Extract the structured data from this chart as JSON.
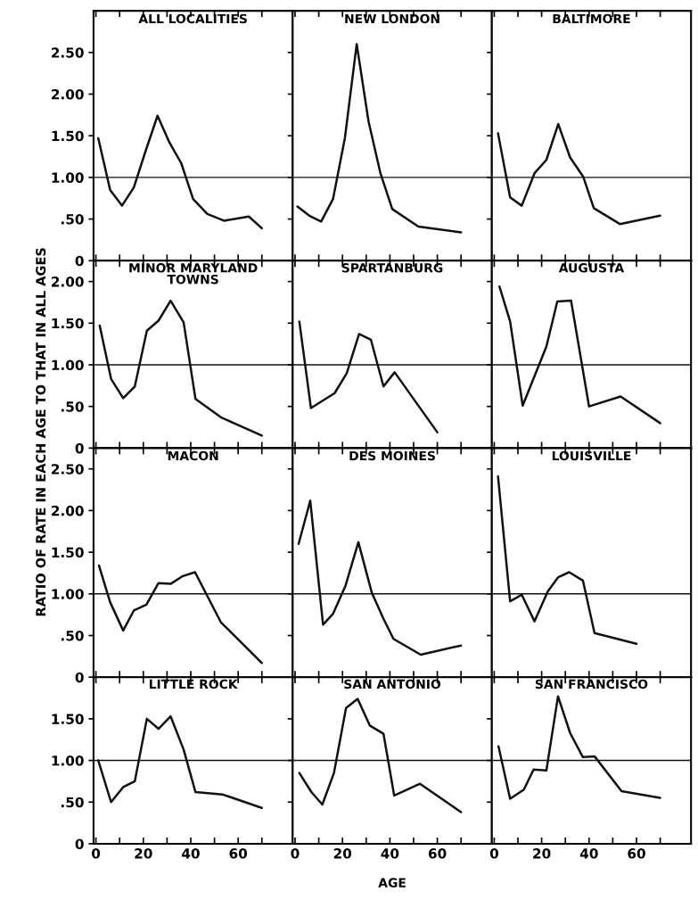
{
  "chart_data": [
    {
      "type": "line",
      "title": "ALL LOCALITIES",
      "x": [
        1,
        6,
        11,
        16,
        21,
        26,
        31,
        36,
        41,
        47,
        54,
        64.5,
        70
      ],
      "series": [
        {
          "color": "#111111",
          "values": [
            1.47,
            0.85,
            0.66,
            0.88,
            1.32,
            1.74,
            1.42,
            1.17,
            0.74,
            0.56,
            0.48,
            0.53,
            0.39
          ]
        }
      ],
      "xlim": [
        -1,
        83
      ],
      "ylim": [
        0,
        3.0
      ],
      "xticks": [
        0,
        10,
        20,
        30,
        40,
        50,
        60,
        70
      ],
      "yticks": [
        0,
        {
          "value": 0.5,
          "label": ".50"
        },
        {
          "value": 1,
          "label": "1.00"
        },
        {
          "value": 1.5,
          "label": "1.50"
        },
        {
          "value": 2,
          "label": "2.00"
        },
        {
          "value": 2.5,
          "label": "2.50"
        }
      ],
      "ref_lines": [
        {
          "axis": "y",
          "value": 1
        }
      ],
      "tick_labels": "y"
    },
    {
      "type": "line",
      "title": "NEW LONDON",
      "x": [
        1,
        6,
        11,
        16,
        21,
        26,
        31,
        36,
        41,
        52,
        70
      ],
      "series": [
        {
          "color": "#111111",
          "values": [
            0.65,
            0.54,
            0.47,
            0.74,
            1.47,
            2.6,
            1.67,
            1.05,
            0.62,
            0.41,
            0.34
          ]
        }
      ],
      "xlim": [
        -1,
        83
      ],
      "ylim": [
        0,
        3.0
      ],
      "xticks": [
        0,
        10,
        20,
        30,
        40,
        50,
        60,
        70
      ],
      "yticks": [
        0,
        0.5,
        1,
        1.5,
        2,
        2.5
      ],
      "ref_lines": [
        {
          "axis": "y",
          "value": 1
        }
      ],
      "tick_labels": false
    },
    {
      "type": "line",
      "title": "BALTIMORE",
      "x": [
        1.6,
        6.7,
        11.6,
        17,
        22,
        27,
        32,
        37.5,
        42,
        53,
        70
      ],
      "series": [
        {
          "color": "#111111",
          "values": [
            1.53,
            0.76,
            0.66,
            1.05,
            1.21,
            1.64,
            1.24,
            1.01,
            0.63,
            0.44,
            0.54
          ]
        }
      ],
      "xlim": [
        -1,
        83
      ],
      "ylim": [
        0,
        3.0
      ],
      "xticks": [
        0,
        10,
        20,
        30,
        40,
        50,
        60,
        70
      ],
      "yticks": [
        0,
        0.5,
        1,
        1.5,
        2,
        2.5
      ],
      "ref_lines": [
        {
          "axis": "y",
          "value": 1
        }
      ],
      "tick_labels": false
    },
    {
      "type": "line",
      "title": "MINOR MARYLAND\nTOWNS",
      "x": [
        1.6,
        6.4,
        11.5,
        16.4,
        21.5,
        26.4,
        31.5,
        37,
        42,
        52.7,
        70
      ],
      "series": [
        {
          "color": "#111111",
          "values": [
            1.47,
            0.83,
            0.6,
            0.74,
            1.41,
            1.53,
            1.77,
            1.51,
            0.59,
            0.37,
            0.15
          ]
        }
      ],
      "xlim": [
        -1,
        83
      ],
      "ylim": [
        0,
        2.25
      ],
      "xticks": [
        0,
        10,
        20,
        30,
        40,
        50,
        60,
        70
      ],
      "yticks": [
        0,
        {
          "value": 0.5,
          "label": ".50"
        },
        {
          "value": 1,
          "label": "1.00"
        },
        {
          "value": 1.5,
          "label": "1.50"
        },
        {
          "value": 2,
          "label": "2.00"
        }
      ],
      "ref_lines": [
        {
          "axis": "y",
          "value": 1
        }
      ],
      "tick_labels": "y"
    },
    {
      "type": "line",
      "title": "SPARTANBURG",
      "x": [
        1.8,
        6.7,
        16.7,
        21.8,
        27,
        32,
        37.3,
        42,
        60
      ],
      "series": [
        {
          "color": "#111111",
          "values": [
            1.52,
            0.48,
            0.66,
            0.9,
            1.37,
            1.3,
            0.74,
            0.91,
            0.19
          ]
        }
      ],
      "xlim": [
        -1,
        83
      ],
      "ylim": [
        0,
        2.25
      ],
      "xticks": [
        0,
        10,
        20,
        30,
        40,
        50,
        60,
        70
      ],
      "yticks": [
        0,
        0.5,
        1,
        1.5,
        2
      ],
      "ref_lines": [
        {
          "axis": "y",
          "value": 1
        }
      ],
      "tick_labels": false
    },
    {
      "type": "line",
      "title": "AUGUSTA",
      "x": [
        2.2,
        6.7,
        12,
        22,
        26.6,
        32.4,
        40,
        53.3,
        70
      ],
      "series": [
        {
          "color": "#111111",
          "values": [
            1.94,
            1.52,
            0.51,
            1.22,
            1.76,
            1.77,
            0.5,
            0.62,
            0.3
          ]
        }
      ],
      "xlim": [
        -1,
        83
      ],
      "ylim": [
        0,
        2.25
      ],
      "xticks": [
        0,
        10,
        20,
        30,
        40,
        50,
        60,
        70
      ],
      "yticks": [
        0,
        0.5,
        1,
        1.5,
        2
      ],
      "ref_lines": [
        {
          "axis": "y",
          "value": 1
        }
      ],
      "tick_labels": false
    },
    {
      "type": "line",
      "title": "MACON",
      "ylabel": "RATIO OF RATE IN EACH AGE TO THAT IN ALL AGES",
      "x": [
        1.3,
        6,
        11.5,
        16,
        21.3,
        26.4,
        31.5,
        36.4,
        41.8,
        52.7,
        70
      ],
      "series": [
        {
          "color": "#111111",
          "values": [
            1.34,
            0.9,
            0.56,
            0.8,
            0.87,
            1.13,
            1.12,
            1.21,
            1.26,
            0.66,
            0.17
          ]
        }
      ],
      "xlim": [
        -1,
        83
      ],
      "ylim": [
        0,
        2.75
      ],
      "xticks": [
        0,
        10,
        20,
        30,
        40,
        50,
        60,
        70
      ],
      "yticks": [
        0,
        {
          "value": 0.5,
          "label": ".50"
        },
        {
          "value": 1,
          "label": "1.00"
        },
        {
          "value": 1.5,
          "label": "1.50"
        },
        {
          "value": 2,
          "label": "2.00"
        },
        {
          "value": 2.5,
          "label": "2.50"
        }
      ],
      "ref_lines": [
        {
          "axis": "y",
          "value": 1
        }
      ],
      "tick_labels": "y"
    },
    {
      "type": "line",
      "title": "DES MOINES",
      "x": [
        1.5,
        6.4,
        11.8,
        16,
        21.3,
        26.7,
        32.4,
        37.3,
        41.5,
        53,
        70
      ],
      "series": [
        {
          "color": "#111111",
          "values": [
            1.6,
            2.12,
            0.63,
            0.76,
            1.1,
            1.62,
            1.01,
            0.7,
            0.46,
            0.27,
            0.38
          ]
        }
      ],
      "xlim": [
        -1,
        83
      ],
      "ylim": [
        0,
        2.75
      ],
      "xticks": [
        0,
        10,
        20,
        30,
        40,
        50,
        60,
        70
      ],
      "yticks": [
        0,
        0.5,
        1,
        1.5,
        2,
        2.5
      ],
      "ref_lines": [
        {
          "axis": "y",
          "value": 1
        }
      ],
      "tick_labels": false
    },
    {
      "type": "line",
      "title": "LOUISVILLE",
      "x": [
        1.6,
        6.7,
        11.6,
        17,
        22.6,
        27,
        31.6,
        37.4,
        42.3,
        60
      ],
      "series": [
        {
          "color": "#111111",
          "values": [
            2.41,
            0.91,
            0.99,
            0.67,
            1.03,
            1.2,
            1.26,
            1.16,
            0.53,
            0.4
          ]
        }
      ],
      "xlim": [
        -1,
        83
      ],
      "ylim": [
        0,
        2.75
      ],
      "xticks": [
        0,
        10,
        20,
        30,
        40,
        50,
        60,
        70
      ],
      "yticks": [
        0,
        0.5,
        1,
        1.5,
        2,
        2.5
      ],
      "ref_lines": [
        {
          "axis": "y",
          "value": 1
        }
      ],
      "tick_labels": false
    },
    {
      "type": "line",
      "title": "LITTLE ROCK",
      "x": [
        1,
        6.4,
        11.5,
        16.4,
        21.5,
        26.4,
        31.5,
        37,
        42,
        53.6,
        70
      ],
      "series": [
        {
          "color": "#111111",
          "values": [
            1.0,
            0.5,
            0.68,
            0.75,
            1.5,
            1.38,
            1.53,
            1.13,
            0.62,
            0.59,
            0.43
          ]
        }
      ],
      "xlim": [
        -1,
        83
      ],
      "ylim": [
        0,
        2.0
      ],
      "xticks": [
        {
          "value": 0,
          "label": "0"
        },
        {
          "value": 10,
          "label": null
        },
        {
          "value": 20,
          "label": "20"
        },
        {
          "value": 30,
          "label": null
        },
        {
          "value": 40,
          "label": "40"
        },
        {
          "value": 50,
          "label": null
        },
        {
          "value": 60,
          "label": "60"
        },
        {
          "value": 70,
          "label": null
        }
      ],
      "yticks": [
        0,
        {
          "value": 0.5,
          "label": ".50"
        },
        {
          "value": 1,
          "label": "1.00"
        },
        {
          "value": 1.5,
          "label": "1.50"
        }
      ],
      "ref_lines": [
        {
          "axis": "y",
          "value": 1
        }
      ]
    },
    {
      "type": "line",
      "title": "SAN ANTONIO",
      "xlabel": "AGE",
      "x": [
        1.8,
        6.9,
        11.5,
        16.4,
        21.5,
        26.4,
        31.5,
        37.3,
        41.8,
        52.7,
        70
      ],
      "series": [
        {
          "color": "#111111",
          "values": [
            0.85,
            0.62,
            0.47,
            0.85,
            1.63,
            1.74,
            1.42,
            1.32,
            0.58,
            0.72,
            0.38
          ]
        }
      ],
      "xlim": [
        -1,
        83
      ],
      "ylim": [
        0,
        2.0
      ],
      "xticks": [
        {
          "value": 0,
          "label": "0"
        },
        {
          "value": 10,
          "label": null
        },
        {
          "value": 20,
          "label": "20"
        },
        {
          "value": 30,
          "label": null
        },
        {
          "value": 40,
          "label": "40"
        },
        {
          "value": 50,
          "label": null
        },
        {
          "value": 60,
          "label": "60"
        },
        {
          "value": 70,
          "label": null
        }
      ],
      "yticks": [
        0,
        0.5,
        1,
        1.5
      ],
      "ref_lines": [
        {
          "axis": "y",
          "value": 1
        }
      ],
      "tick_labels": "x"
    },
    {
      "type": "line",
      "title": "SAN FRANCISCO",
      "x": [
        1.8,
        6.7,
        12.5,
        16.6,
        22,
        26.9,
        32,
        37.4,
        42.3,
        53.7,
        70
      ],
      "series": [
        {
          "color": "#111111",
          "values": [
            1.17,
            0.54,
            0.65,
            0.89,
            0.88,
            1.77,
            1.33,
            1.04,
            1.05,
            0.63,
            0.55
          ]
        }
      ],
      "xlim": [
        -1,
        83
      ],
      "ylim": [
        0,
        2.0
      ],
      "xticks": [
        {
          "value": 0,
          "label": "0"
        },
        {
          "value": 10,
          "label": null
        },
        {
          "value": 20,
          "label": "20"
        },
        {
          "value": 30,
          "label": null
        },
        {
          "value": 40,
          "label": "40"
        },
        {
          "value": 50,
          "label": null
        },
        {
          "value": 60,
          "label": "60"
        },
        {
          "value": 70,
          "label": null
        }
      ],
      "yticks": [
        0,
        0.5,
        1,
        1.5
      ],
      "ref_lines": [
        {
          "axis": "y",
          "value": 1
        }
      ],
      "tick_labels": "x"
    }
  ]
}
